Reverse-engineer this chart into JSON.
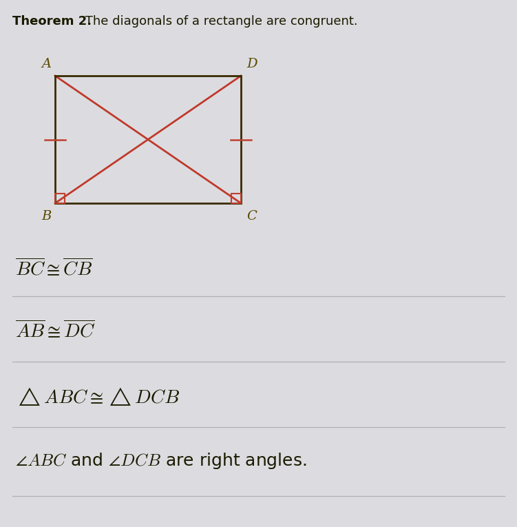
{
  "title_bold": "Theorem 2.",
  "title_normal": " The diagonals of a rectangle are congruent.",
  "bg_color": "#dcdce0",
  "rect_color": "#3a2a00",
  "diagonal_color": "#c0392b",
  "tick_color": "#c04030",
  "corner_sq_color": "#c04030",
  "label_color": "#5a4a00",
  "label_fontsize": 14,
  "title_fontsize": 13,
  "lines": [
    {
      "text": "$\\overline{BC} \\cong \\overline{CB}$",
      "fontsize": 20
    },
    {
      "text": "$\\overline{AB} \\cong \\overline{DC}$",
      "fontsize": 20
    },
    {
      "text": "$\\triangle ABC \\cong \\triangle DCB$",
      "fontsize": 20
    },
    {
      "text": "$\\angle ABC$ and $\\angle DCB$ are right angles.",
      "fontsize": 18
    }
  ],
  "divider_color": "#b0b0b4"
}
